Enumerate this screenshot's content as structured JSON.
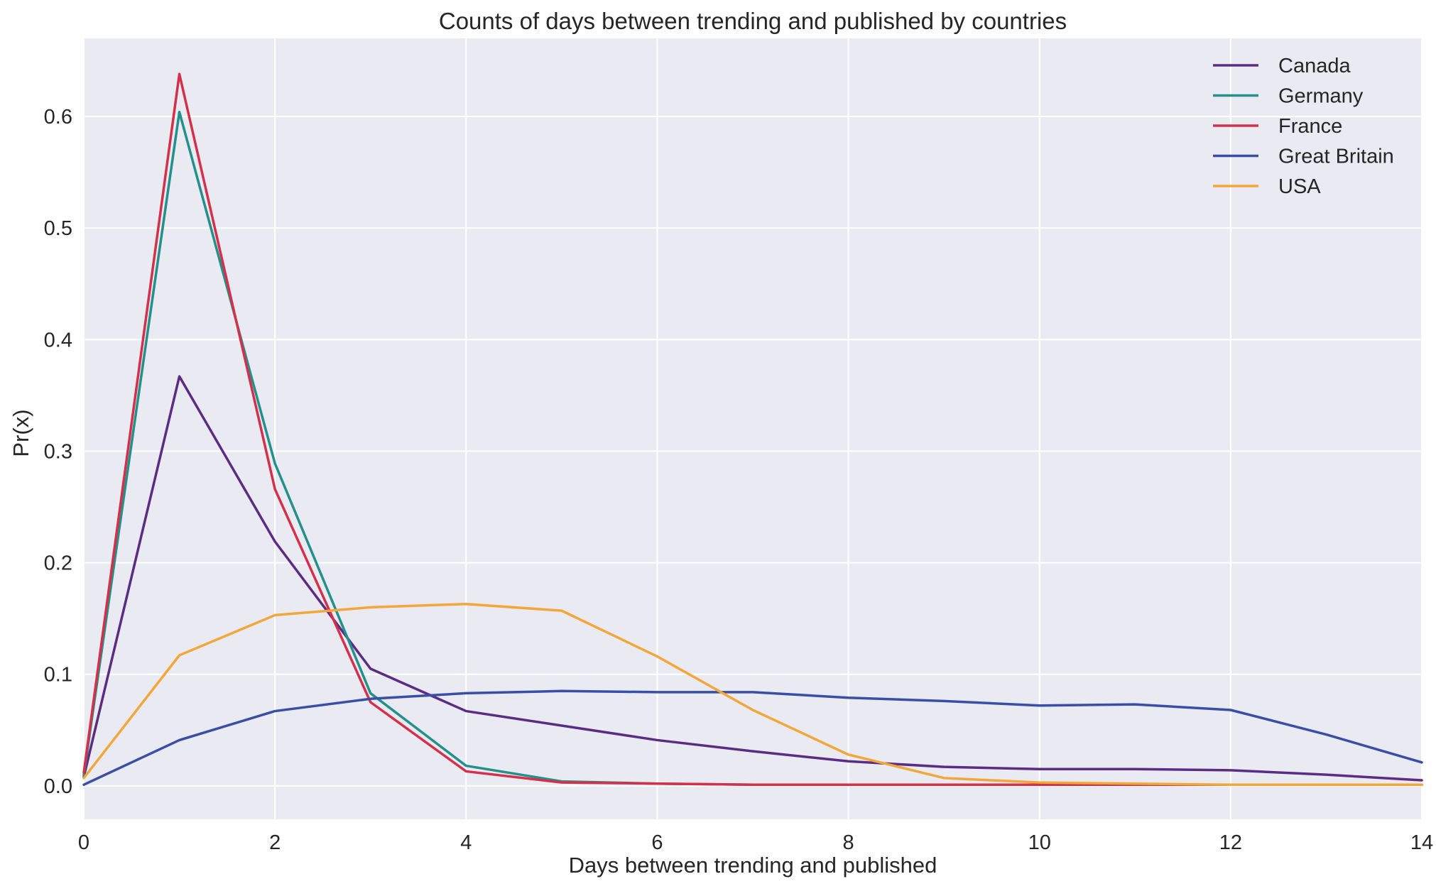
{
  "chart_data": {
    "type": "line",
    "title": "Counts of days between trending and published by countries",
    "xlabel": "Days between trending and published",
    "ylabel": "Pr(x)",
    "xlim": [
      0,
      14
    ],
    "ylim": [
      -0.03,
      0.67
    ],
    "xticks": [
      0,
      2,
      4,
      6,
      8,
      10,
      12,
      14
    ],
    "xtick_labels": [
      "0",
      "2",
      "4",
      "6",
      "8",
      "10",
      "12",
      "14"
    ],
    "yticks": [
      0.0,
      0.1,
      0.2,
      0.3,
      0.4,
      0.5,
      0.6
    ],
    "ytick_labels": [
      "0.0",
      "0.1",
      "0.2",
      "0.3",
      "0.4",
      "0.5",
      "0.6"
    ],
    "grid": true,
    "legend_position": "top-right",
    "background_color": "#eaeaf2",
    "grid_color": "#ffffff",
    "x": [
      0,
      1,
      2,
      3,
      4,
      5,
      6,
      7,
      8,
      9,
      10,
      11,
      12,
      13,
      14
    ],
    "series": [
      {
        "name": "Canada",
        "color": "#5b2c83",
        "values": [
          0.008,
          0.367,
          0.219,
          0.105,
          0.067,
          0.054,
          0.041,
          0.031,
          0.022,
          0.017,
          0.015,
          0.015,
          0.014,
          0.01,
          0.005
        ]
      },
      {
        "name": "Germany",
        "color": "#23908a",
        "values": [
          0.01,
          0.604,
          0.289,
          0.083,
          0.018,
          0.004,
          0.002,
          0.001,
          0.001,
          0.001,
          0.001,
          0.001,
          0.001,
          0.001,
          0.001
        ]
      },
      {
        "name": "France",
        "color": "#d4304a",
        "values": [
          0.012,
          0.638,
          0.266,
          0.075,
          0.013,
          0.003,
          0.002,
          0.001,
          0.001,
          0.001,
          0.001,
          0.001,
          0.001,
          0.001,
          0.001
        ]
      },
      {
        "name": "Great Britain",
        "color": "#3a4ea6",
        "values": [
          0.001,
          0.041,
          0.067,
          0.078,
          0.083,
          0.085,
          0.084,
          0.084,
          0.079,
          0.076,
          0.072,
          0.073,
          0.068,
          0.046,
          0.021
        ]
      },
      {
        "name": "USA",
        "color": "#f3a73b",
        "values": [
          0.007,
          0.117,
          0.153,
          0.16,
          0.163,
          0.157,
          0.116,
          0.068,
          0.028,
          0.007,
          0.003,
          0.002,
          0.001,
          0.001,
          0.001
        ]
      }
    ]
  }
}
